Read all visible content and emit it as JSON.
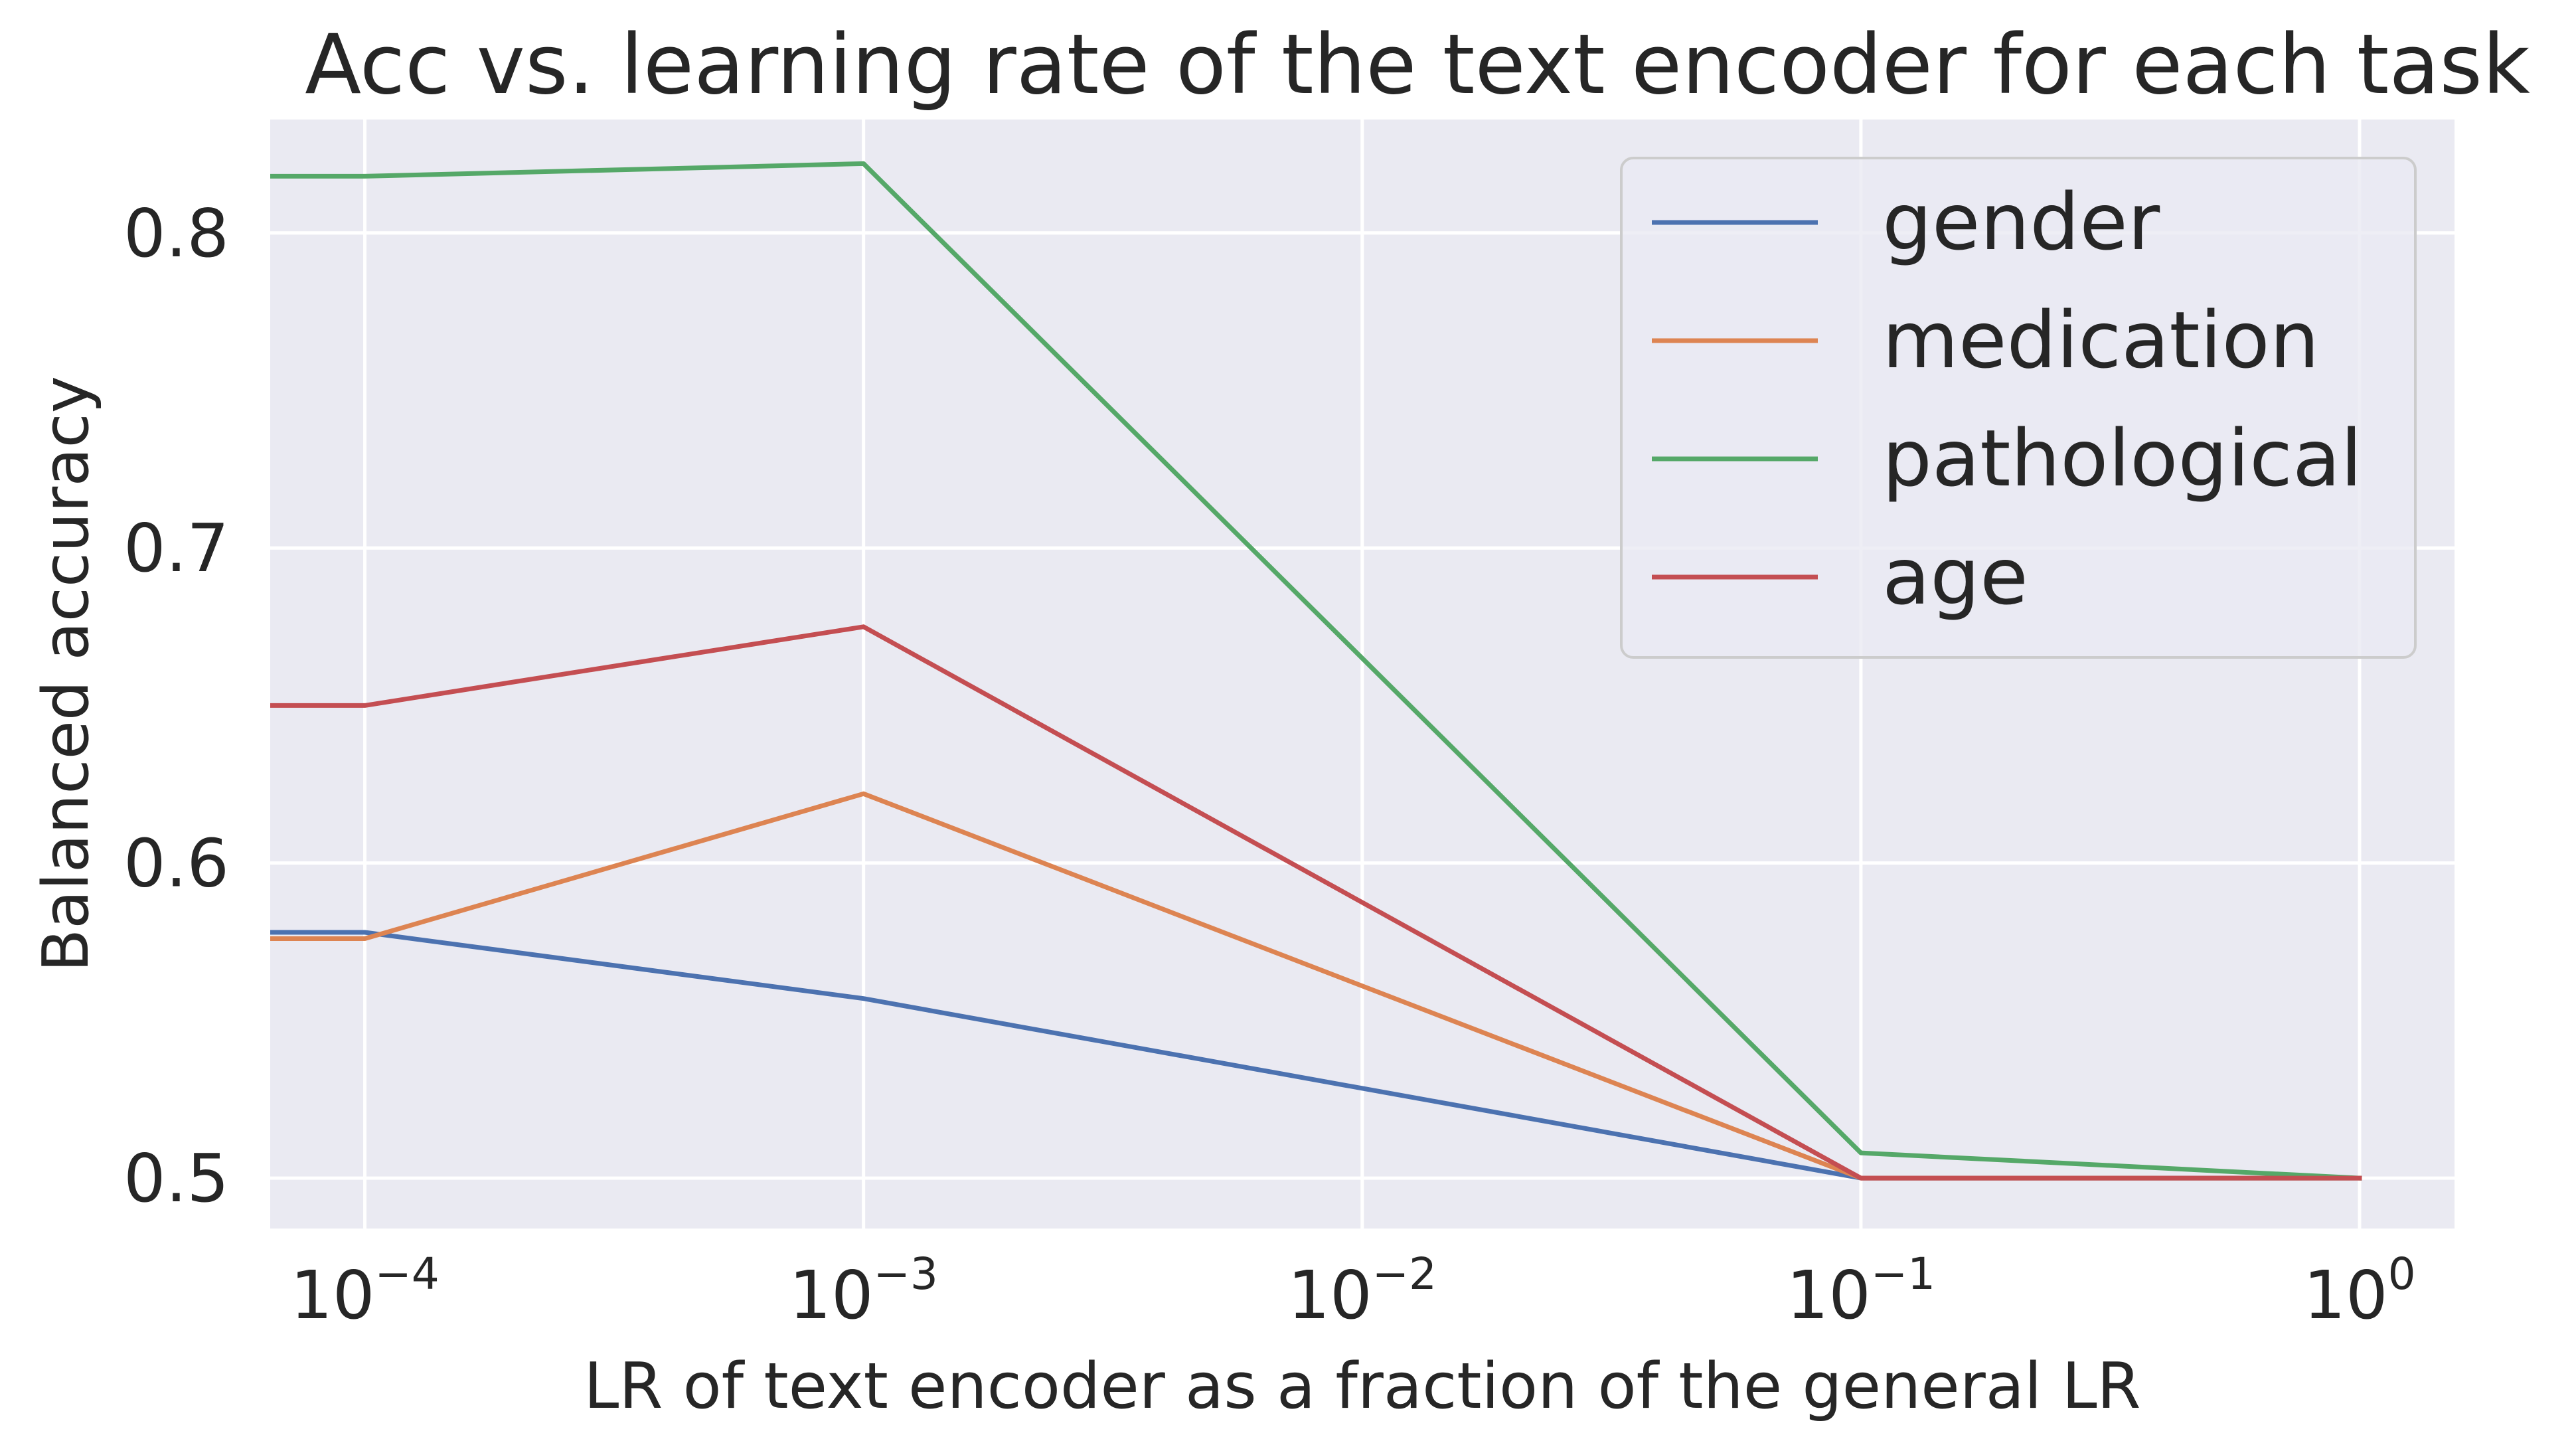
{
  "chart_data": {
    "type": "line",
    "title": "Acc vs. learning rate of the text encoder for each task",
    "xlabel": "LR of text encoder as a fraction of the general LR",
    "ylabel": "Balanced accuracy",
    "xscale": "log",
    "xlim": [
      6.46e-05,
      1.55
    ],
    "ylim": [
      0.484,
      0.836
    ],
    "grid": true,
    "legend_position": "top-right",
    "x_ticks": [
      {
        "value": 0.0001,
        "base": "10",
        "exp": "−4"
      },
      {
        "value": 0.001,
        "base": "10",
        "exp": "−3"
      },
      {
        "value": 0.01,
        "base": "10",
        "exp": "−2"
      },
      {
        "value": 0.1,
        "base": "10",
        "exp": "−1"
      },
      {
        "value": 1,
        "base": "10",
        "exp": "0"
      }
    ],
    "y_ticks": [
      {
        "value": 0.5,
        "label": "0.5"
      },
      {
        "value": 0.6,
        "label": "0.6"
      },
      {
        "value": 0.7,
        "label": "0.7"
      },
      {
        "value": 0.8,
        "label": "0.8"
      }
    ],
    "series": [
      {
        "name": "gender",
        "color": "#4c72b0",
        "points": [
          [
            3e-05,
            0.578
          ],
          [
            0.0001,
            0.578
          ],
          [
            0.001,
            0.557
          ],
          [
            0.1,
            0.5
          ],
          [
            1,
            0.5
          ]
        ]
      },
      {
        "name": "medication",
        "color": "#dd8452",
        "points": [
          [
            3e-05,
            0.576
          ],
          [
            0.0001,
            0.576
          ],
          [
            0.001,
            0.622
          ],
          [
            0.1,
            0.5
          ],
          [
            1,
            0.5
          ]
        ]
      },
      {
        "name": "pathological",
        "color": "#55a868",
        "points": [
          [
            3e-05,
            0.818
          ],
          [
            0.0001,
            0.818
          ],
          [
            0.001,
            0.822
          ],
          [
            0.1,
            0.508
          ],
          [
            1,
            0.5
          ]
        ]
      },
      {
        "name": "age",
        "color": "#c44e52",
        "points": [
          [
            3e-05,
            0.65
          ],
          [
            0.0001,
            0.65
          ],
          [
            0.001,
            0.675
          ],
          [
            0.1,
            0.5
          ],
          [
            1,
            0.5
          ]
        ]
      }
    ]
  }
}
